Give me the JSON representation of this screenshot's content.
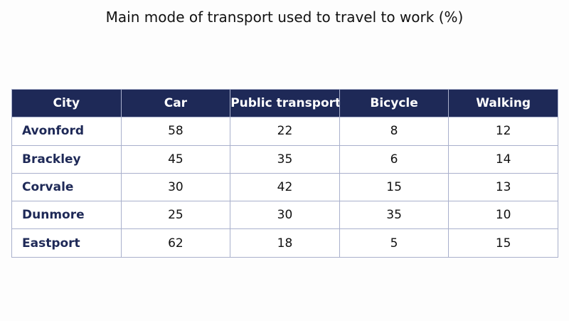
{
  "chart_data": {
    "type": "table",
    "title": "Main mode of transport used to travel to work (%)",
    "columns": [
      "City",
      "Car",
      "Public transport",
      "Bicycle",
      "Walking"
    ],
    "rows": [
      [
        "Avonford",
        "58",
        "22",
        "8",
        "12"
      ],
      [
        "Brackley",
        "45",
        "35",
        "6",
        "14"
      ],
      [
        "Corvale",
        "30",
        "42",
        "15",
        "13"
      ],
      [
        "Dunmore",
        "25",
        "30",
        "35",
        "10"
      ],
      [
        "Eastport",
        "62",
        "18",
        "5",
        "15"
      ]
    ]
  },
  "colors": {
    "header_background": "#1e2957",
    "header_text": "#ffffff",
    "row_label_text": "#1e2957",
    "border": "#a9b0cc"
  }
}
